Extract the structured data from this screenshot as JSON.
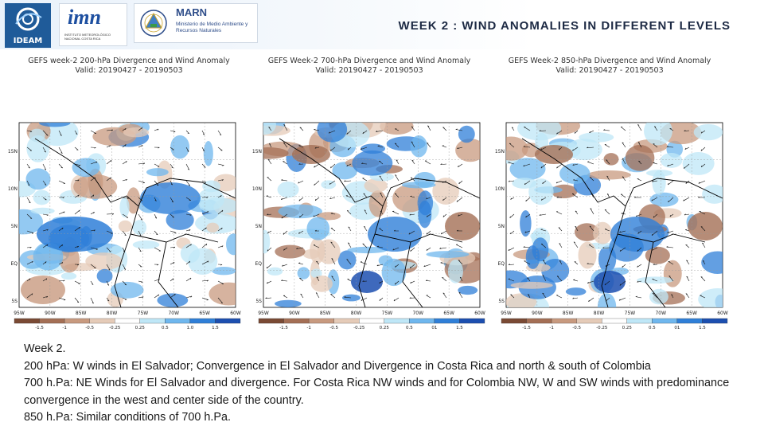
{
  "header": {
    "logos": {
      "ideam": "IDEAM",
      "imn": "imn",
      "imn_sub": "INSTITUTO METEOROLÓGICO NACIONAL COSTA RICA",
      "marn": "MARN",
      "marn_sub": "Ministerio de Medio Ambiente y Recursos Naturales"
    },
    "title": "WEEK 2 : WIND ANOMALIES IN DIFFERENT LEVELS"
  },
  "panels": [
    {
      "title": "GEFS week-2 200-hPa Divergence and Wind Anomaly",
      "valid": "Valid: 20190427 - 20190503"
    },
    {
      "title": "GEFS Week-2 700-hPa Divergence and Wind Anomaly",
      "valid": "Valid: 20190427 - 20190503"
    },
    {
      "title": "GEFS Week-2 850-hPa Divergence and Wind Anomaly",
      "valid": "Valid: 20190427 - 20190503"
    }
  ],
  "map_axes": {
    "lat_ticks": [
      "15N",
      "10N",
      "5N",
      "EQ",
      "5S"
    ],
    "lon_ticks": [
      "95W",
      "90W",
      "85W",
      "80W",
      "75W",
      "70W",
      "65W",
      "60W"
    ]
  },
  "colorbar": {
    "labels_1": [
      "-1.5",
      "-1",
      "-0.5",
      "-0.25",
      "0.25",
      "0.5",
      "1.0",
      "1.5"
    ],
    "labels_2": [
      "-1.5",
      "-1",
      "-0.5",
      "-0.25",
      "0.25",
      "0.5",
      "01",
      "1.5"
    ],
    "labels_3": [
      "-1.5",
      "-1",
      "-0.5",
      "-0.25",
      "0.25",
      "0.5",
      "01",
      "1.5"
    ],
    "colors": [
      "#7a4a34",
      "#a46f55",
      "#c89a7f",
      "#e5cbb8",
      "#ffffff",
      "#bfe7f7",
      "#6fb7ee",
      "#2f7fd8",
      "#1c4fb0"
    ]
  },
  "body": {
    "line1": "Week 2.",
    "line2": "200 hPa: W winds in El Salvador; Convergence in El Salvador and Divergence in Costa Rica and north & south of Colombia",
    "line3": "700 h.Pa: NE  Winds for El Salvador and divergence. For Costa Rica NW winds and for Colombia NW, W and SW winds with predominance convergence in the west and center side of the country.",
    "line4": "850 h.Pa: Similar conditions of 700 h.Pa."
  }
}
